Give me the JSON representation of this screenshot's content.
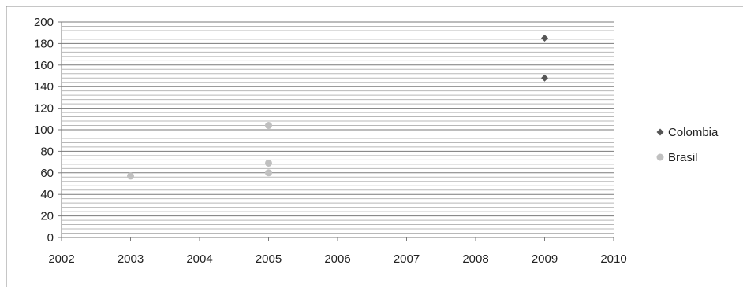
{
  "chart_data": {
    "type": "scatter",
    "title": "",
    "xlabel": "",
    "ylabel": "",
    "xlim": [
      2002,
      2010
    ],
    "ylim": [
      0,
      200
    ],
    "x_ticks": [
      "2002",
      "2003",
      "2004",
      "2005",
      "2006",
      "2007",
      "2008",
      "2009",
      "2010"
    ],
    "y_ticks": [
      "0",
      "20",
      "40",
      "60",
      "80",
      "100",
      "120",
      "140",
      "160",
      "180",
      "200"
    ],
    "y_major_step": 20,
    "y_minor_step": 4,
    "grid": true,
    "legend_position": "right",
    "series": [
      {
        "name": "Colombia",
        "marker": "diamond",
        "color": "#555555",
        "points": [
          {
            "x": 2009,
            "y": 185
          },
          {
            "x": 2009,
            "y": 148
          }
        ]
      },
      {
        "name": "Brasil",
        "marker": "circle",
        "color": "#c0c0c0",
        "points": [
          {
            "x": 2003,
            "y": 57
          },
          {
            "x": 2005,
            "y": 104
          },
          {
            "x": 2005,
            "y": 69
          },
          {
            "x": 2005,
            "y": 60
          }
        ]
      }
    ]
  }
}
